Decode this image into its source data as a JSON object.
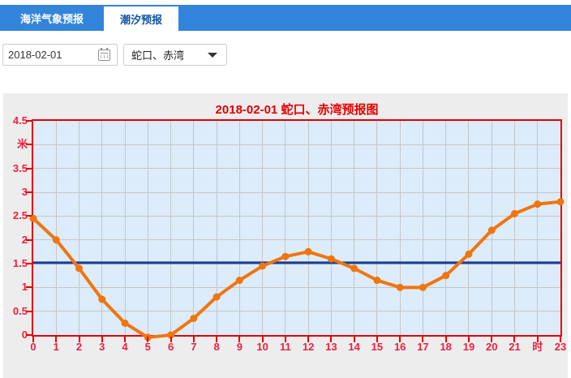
{
  "tabs": {
    "marine_label": "海洋气象预报",
    "tide_label": "潮汐预报"
  },
  "controls": {
    "date_value": "2018-02-01",
    "station_value": "蛇口、赤湾"
  },
  "chart_data": {
    "type": "line",
    "title": "2018-02-01 蛇口、赤湾预报图",
    "xlabel": "时",
    "ylabel": "米",
    "x": [
      0,
      1,
      2,
      3,
      4,
      5,
      6,
      7,
      8,
      9,
      10,
      11,
      12,
      13,
      14,
      15,
      16,
      17,
      18,
      19,
      20,
      21,
      22,
      23
    ],
    "x_tick_labels": [
      "0",
      "1",
      "2",
      "3",
      "4",
      "5",
      "6",
      "7",
      "8",
      "9",
      "10",
      "11",
      "12",
      "13",
      "14",
      "15",
      "16",
      "17",
      "18",
      "19",
      "20",
      "21",
      "时",
      "23"
    ],
    "y_ticks": [
      0,
      0.5,
      1,
      1.5,
      2,
      2.5,
      3,
      3.5,
      4,
      4.5
    ],
    "y_tick_labels": [
      "0",
      "0.5",
      "1",
      "1.5",
      "2",
      "2.5",
      "3",
      "3.5",
      "米",
      "4.5"
    ],
    "ylim": [
      0,
      4.5
    ],
    "xlim": [
      0,
      23
    ],
    "grid": true,
    "series": [
      {
        "color": "#f0750f",
        "values": [
          2.45,
          2.0,
          1.4,
          0.75,
          0.25,
          -0.05,
          0.0,
          0.35,
          0.8,
          1.15,
          1.45,
          1.65,
          1.75,
          1.6,
          1.4,
          1.15,
          1.0,
          1.0,
          1.25,
          1.7,
          2.2,
          2.55,
          2.75,
          2.8
        ]
      }
    ],
    "reference_line": {
      "value": 1.52,
      "color": "#173d99"
    },
    "colors": {
      "title": "#e60000",
      "axis": "#e60000",
      "tick_label": "#ee2040",
      "plot_bg": "#dcecfa",
      "gridline": "#c6c6c6",
      "panel_bg": "#ededed",
      "tab_bar": "#3385dc",
      "active_tab_text": "#1155a4"
    }
  }
}
